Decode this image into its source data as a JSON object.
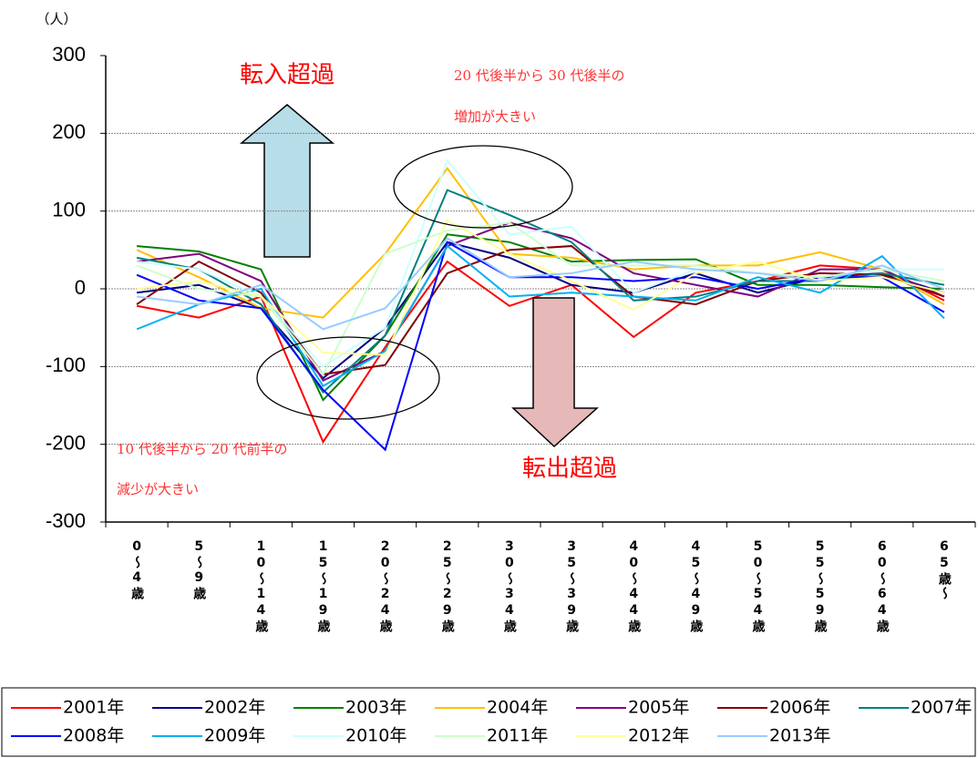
{
  "chart_data": {
    "type": "line",
    "unit_label": "（人）",
    "categories": [
      "0～4歳",
      "5～9歳",
      "10～14歳",
      "15～19歳",
      "20～24歳",
      "25～29歳",
      "30～34歳",
      "35～39歳",
      "40～44歳",
      "45～49歳",
      "50～54歳",
      "55～59歳",
      "60～64歳",
      "65歳～"
    ],
    "series": [
      {
        "name": "2001年",
        "color": "#ff0000",
        "values": [
          -22,
          -37,
          -10,
          -197,
          -75,
          35,
          -22,
          5,
          -62,
          -5,
          10,
          30,
          25,
          -15
        ]
      },
      {
        "name": "2002年",
        "color": "#000080",
        "values": [
          -5,
          5,
          -25,
          -115,
          -50,
          60,
          40,
          5,
          -5,
          20,
          -5,
          15,
          20,
          -5
        ]
      },
      {
        "name": "2003年",
        "color": "#008000",
        "values": [
          55,
          48,
          25,
          -143,
          -60,
          70,
          60,
          35,
          37,
          38,
          5,
          5,
          2,
          0
        ]
      },
      {
        "name": "2004年",
        "color": "#ffc000",
        "values": [
          50,
          15,
          -25,
          -37,
          45,
          155,
          45,
          40,
          25,
          30,
          30,
          47,
          25,
          -20
        ]
      },
      {
        "name": "2005年",
        "color": "#800080",
        "values": [
          35,
          45,
          10,
          -118,
          -80,
          55,
          85,
          65,
          20,
          5,
          -10,
          25,
          25,
          -10
        ]
      },
      {
        "name": "2006年",
        "color": "#800000",
        "values": [
          -20,
          35,
          -5,
          -110,
          -98,
          20,
          50,
          55,
          -10,
          -20,
          10,
          20,
          18,
          -10
        ]
      },
      {
        "name": "2007年",
        "color": "#008080",
        "values": [
          40,
          25,
          -20,
          -133,
          -60,
          127,
          95,
          60,
          -15,
          -10,
          10,
          10,
          20,
          5
        ]
      },
      {
        "name": "2008年",
        "color": "#0000ff",
        "values": [
          18,
          -15,
          -25,
          -130,
          -207,
          60,
          15,
          15,
          10,
          15,
          0,
          15,
          15,
          -30
        ]
      },
      {
        "name": "2009年",
        "color": "#00b0f0",
        "values": [
          -52,
          -20,
          0,
          -125,
          -80,
          55,
          -10,
          -5,
          -10,
          -15,
          15,
          -5,
          42,
          -38
        ]
      },
      {
        "name": "2010年",
        "color": "#ccffff",
        "values": [
          35,
          25,
          -10,
          -100,
          -50,
          165,
          70,
          80,
          -5,
          25,
          20,
          15,
          25,
          25
        ]
      },
      {
        "name": "2011年",
        "color": "#ccffcc",
        "values": [
          30,
          0,
          -10,
          -110,
          45,
          75,
          85,
          30,
          30,
          30,
          20,
          15,
          25,
          10
        ]
      },
      {
        "name": "2012年",
        "color": "#ffff99",
        "values": [
          0,
          10,
          -10,
          -82,
          -85,
          88,
          45,
          10,
          -27,
          20,
          35,
          10,
          15,
          -5
        ]
      },
      {
        "name": "2013年",
        "color": "#99ccff",
        "values": [
          -10,
          -20,
          5,
          -52,
          -25,
          65,
          15,
          20,
          35,
          25,
          20,
          10,
          30,
          0
        ]
      }
    ],
    "ylim": [
      -300,
      300
    ],
    "yticks": [
      -300,
      -200,
      -100,
      0,
      100,
      200,
      300
    ],
    "grid": true,
    "annotations": [
      "転入超過",
      "20 代後半から 30 代後半の",
      "増加が大きい",
      "10 代後半から 20 代前半の",
      "減少が大きい",
      "転出超過"
    ]
  }
}
